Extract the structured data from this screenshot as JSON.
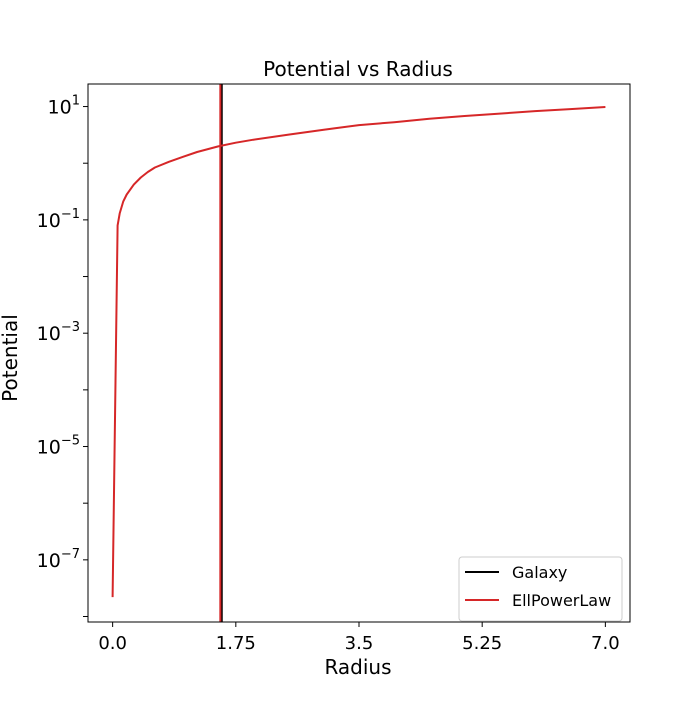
{
  "chart_data": {
    "type": "line",
    "title": "Potential vs Radius",
    "xlabel": "Radius",
    "ylabel": "Potential",
    "xlim": [
      -0.35,
      7.35
    ],
    "ylim": [
      8e-09,
      25
    ],
    "yscale": "log",
    "grid": false,
    "legend_position": "lower-right",
    "x_ticks": [
      {
        "value": 0.0,
        "label": "0.0"
      },
      {
        "value": 1.75,
        "label": "1.75"
      },
      {
        "value": 3.5,
        "label": "3.5"
      },
      {
        "value": 5.25,
        "label": "5.25"
      },
      {
        "value": 7.0,
        "label": "7.0"
      }
    ],
    "y_ticks": [
      {
        "value": 10,
        "base": "10",
        "exp": "1"
      },
      {
        "value": 0.1,
        "base": "10",
        "exp": "−1"
      },
      {
        "value": 0.001,
        "base": "10",
        "exp": "−3"
      },
      {
        "value": 1e-05,
        "base": "10",
        "exp": "−5"
      },
      {
        "value": 1e-07,
        "base": "10",
        "exp": "−7"
      }
    ],
    "series": [
      {
        "name": "Galaxy",
        "kind": "vline",
        "x": 1.55,
        "color": "#000000"
      },
      {
        "name": "EllPowerLaw",
        "kind": "vline",
        "x": 1.53,
        "color": "#d62728"
      },
      {
        "name": "EllPowerLaw",
        "kind": "curve",
        "color": "#d62728",
        "x": [
          0.0,
          0.07,
          0.1,
          0.15,
          0.2,
          0.3,
          0.4,
          0.5,
          0.6,
          0.8,
          1.0,
          1.2,
          1.5,
          1.75,
          2.0,
          2.5,
          3.0,
          3.5,
          4.0,
          4.5,
          5.0,
          5.5,
          6.0,
          6.5,
          7.0
        ],
        "y": [
          2.2e-08,
          0.08,
          0.13,
          0.21,
          0.28,
          0.42,
          0.56,
          0.7,
          0.84,
          1.06,
          1.3,
          1.58,
          1.98,
          2.3,
          2.6,
          3.2,
          3.9,
          4.7,
          5.3,
          6.1,
          6.8,
          7.5,
          8.3,
          9.0,
          9.8
        ]
      }
    ]
  }
}
